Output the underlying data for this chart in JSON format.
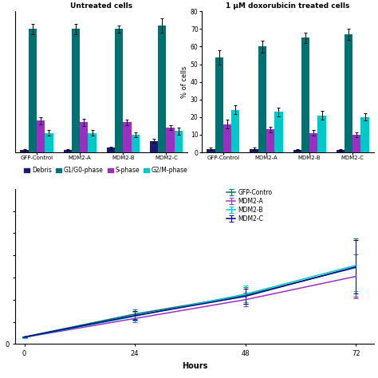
{
  "bar_untreated": {
    "title": "Untreated cells",
    "groups": [
      "GFP-Control",
      "MDM2-A",
      "MDM2-B",
      "MDM2-C"
    ],
    "debris": [
      1.5,
      1.5,
      2.5,
      6.5
    ],
    "g1g0": [
      70,
      70,
      70,
      72
    ],
    "s": [
      18,
      17,
      17,
      14
    ],
    "g2m": [
      11,
      11,
      10,
      12
    ],
    "debris_err": [
      0.4,
      0.4,
      0.5,
      1.0
    ],
    "g1g0_err": [
      3,
      3,
      2,
      4
    ],
    "s_err": [
      2,
      2,
      1.5,
      1.5
    ],
    "g2m_err": [
      1.5,
      1.5,
      1.2,
      2.0
    ]
  },
  "bar_treated": {
    "title": "1 μM doxorubicin treated cells",
    "groups": [
      "GFP-Control",
      "MDM2-A",
      "MDM2-B",
      "MDM2-C"
    ],
    "debris": [
      2.0,
      2.0,
      1.5,
      1.5
    ],
    "g1g0": [
      54,
      60,
      65,
      67
    ],
    "s": [
      16,
      13,
      11,
      10
    ],
    "g2m": [
      24,
      23,
      21,
      20
    ],
    "debris_err": [
      0.5,
      0.5,
      0.3,
      0.4
    ],
    "g1g0_err": [
      4,
      3.5,
      3,
      3
    ],
    "s_err": [
      2.5,
      1.5,
      1.5,
      1.5
    ],
    "g2m_err": [
      2.5,
      2.5,
      2.5,
      2.0
    ]
  },
  "bar_colors": {
    "debris": "#1a1a6e",
    "g1g0": "#007070",
    "s": "#9b30c0",
    "g2m": "#00c8c8"
  },
  "bar_ylabel": "% of cells",
  "bar_ylim": [
    0,
    80
  ],
  "bar_yticks": [
    0,
    10,
    20,
    30,
    40,
    50,
    60,
    70,
    80
  ],
  "legend_labels": [
    "Debris",
    "G1/G0-phase",
    "S-phase",
    "G2/M-phase"
  ],
  "line_data": {
    "hours": [
      0,
      24,
      48,
      72
    ],
    "gfp_control": [
      32000,
      135000,
      220000,
      345000
    ],
    "mdm2_a": [
      30000,
      115000,
      200000,
      305000
    ],
    "mdm2_b": [
      30000,
      125000,
      225000,
      355000
    ],
    "mdm2_c": [
      31000,
      128000,
      215000,
      348000
    ],
    "gfp_err": [
      2000,
      22000,
      38000,
      130000
    ],
    "mdm2_a_err": [
      2000,
      18000,
      30000,
      100000
    ],
    "mdm2_b_err": [
      2000,
      20000,
      38000,
      115000
    ],
    "mdm2_c_err": [
      2000,
      20000,
      35000,
      120000
    ],
    "colors": {
      "gfp_control": "#007070",
      "mdm2_a": "#9b30c0",
      "mdm2_b": "#00c8c8",
      "mdm2_c": "#00008B"
    },
    "labels": {
      "gfp_control": "GFP-Contro",
      "mdm2_a": "MDM2-A",
      "mdm2_b": "MDM2-B",
      "mdm2_c": "MDM2-C"
    },
    "xlabel": "Hours",
    "ylim": [
      0,
      700000
    ]
  }
}
